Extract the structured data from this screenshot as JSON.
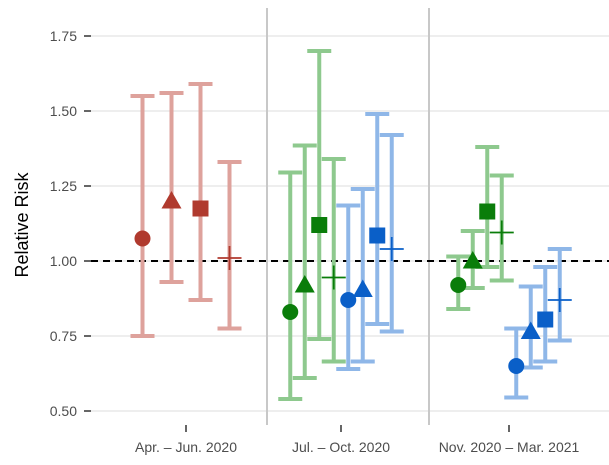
{
  "chart_data": {
    "type": "scatter",
    "subtype": "point-range (estimates with error bars)",
    "title": "",
    "xlabel": "",
    "ylabel": "Relative Risk",
    "ylim": [
      0.5,
      1.78
    ],
    "yticks": [
      0.5,
      0.75,
      1.0,
      1.25,
      1.5,
      1.75
    ],
    "ytick_labels": [
      "0.50",
      "0.75",
      "1.00",
      "1.25",
      "1.50",
      "1.75"
    ],
    "reference_line": {
      "y": 1.0,
      "style": "dashed",
      "color": "#000000"
    },
    "grid": {
      "horizontal": true,
      "vertical": false,
      "panel_separators": true
    },
    "legend": "none",
    "colors": {
      "red": "#b03a2e",
      "green": "#0a7d0a",
      "blue": "#0a5fc8"
    },
    "groups": [
      {
        "name": "Apr. – Jun. 2020",
        "points": [
          {
            "color": "red",
            "marker": "circle",
            "estimate": 1.075,
            "lower": 0.75,
            "upper": 1.55
          },
          {
            "color": "red",
            "marker": "triangle",
            "estimate": 1.2,
            "lower": 0.93,
            "upper": 1.56
          },
          {
            "color": "red",
            "marker": "square",
            "estimate": 1.175,
            "lower": 0.87,
            "upper": 1.59
          },
          {
            "color": "red",
            "marker": "cross",
            "estimate": 1.01,
            "lower": 0.775,
            "upper": 1.33
          }
        ]
      },
      {
        "name": "Jul. – Oct. 2020",
        "points": [
          {
            "color": "green",
            "marker": "circle",
            "estimate": 0.83,
            "lower": 0.54,
            "upper": 1.295
          },
          {
            "color": "green",
            "marker": "triangle",
            "estimate": 0.92,
            "lower": 0.61,
            "upper": 1.385
          },
          {
            "color": "green",
            "marker": "square",
            "estimate": 1.12,
            "lower": 0.74,
            "upper": 1.7
          },
          {
            "color": "green",
            "marker": "cross",
            "estimate": 0.945,
            "lower": 0.665,
            "upper": 1.34
          },
          {
            "color": "blue",
            "marker": "circle",
            "estimate": 0.87,
            "lower": 0.64,
            "upper": 1.185
          },
          {
            "color": "blue",
            "marker": "triangle",
            "estimate": 0.905,
            "lower": 0.665,
            "upper": 1.24
          },
          {
            "color": "blue",
            "marker": "square",
            "estimate": 1.085,
            "lower": 0.79,
            "upper": 1.49
          },
          {
            "color": "blue",
            "marker": "cross",
            "estimate": 1.04,
            "lower": 0.765,
            "upper": 1.42
          }
        ]
      },
      {
        "name": "Nov. 2020 – Mar. 2021",
        "points": [
          {
            "color": "green",
            "marker": "circle",
            "estimate": 0.92,
            "lower": 0.84,
            "upper": 1.015
          },
          {
            "color": "green",
            "marker": "triangle",
            "estimate": 1.0,
            "lower": 0.91,
            "upper": 1.1
          },
          {
            "color": "green",
            "marker": "square",
            "estimate": 1.165,
            "lower": 0.98,
            "upper": 1.38
          },
          {
            "color": "green",
            "marker": "cross",
            "estimate": 1.095,
            "lower": 0.935,
            "upper": 1.285
          },
          {
            "color": "blue",
            "marker": "circle",
            "estimate": 0.65,
            "lower": 0.545,
            "upper": 0.775
          },
          {
            "color": "blue",
            "marker": "triangle",
            "estimate": 0.765,
            "lower": 0.645,
            "upper": 0.915
          },
          {
            "color": "blue",
            "marker": "square",
            "estimate": 0.805,
            "lower": 0.665,
            "upper": 0.98
          },
          {
            "color": "blue",
            "marker": "cross",
            "estimate": 0.87,
            "lower": 0.735,
            "upper": 1.04
          }
        ]
      }
    ]
  }
}
